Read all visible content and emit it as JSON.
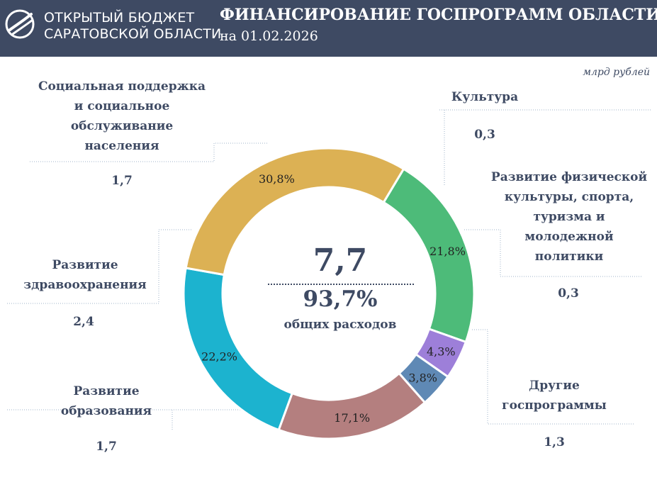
{
  "header": {
    "brand_line1": "ОТКРЫТЫЙ БЮДЖЕТ",
    "brand_line2": "САРАТОВСКОЙ ОБЛАСТИ",
    "title": "ФИНАНСИРОВАНИЕ ГОСПРОГРАММ ОБЛАСТИ",
    "subtitle": "на 01.02.2026"
  },
  "unit": "млрд рублей",
  "center": {
    "total": "7,7",
    "percent": "93,7%",
    "caption": "общих расходов"
  },
  "categories": [
    {
      "label_lines": [
        "Социальная поддержка",
        "и социальное",
        "обслуживание",
        "населения"
      ],
      "value": "1,7"
    },
    {
      "label_lines": [
        "Культура"
      ],
      "value": "0,3"
    },
    {
      "label_lines": [
        "Развитие физической",
        "культуры, спорта,",
        "туризма и",
        "молодежной",
        "политики"
      ],
      "value": "0,3"
    },
    {
      "label_lines": [
        "Другие",
        "госпрограммы"
      ],
      "value": "1,3"
    },
    {
      "label_lines": [
        "Развитие",
        "образования"
      ],
      "value": "1,7"
    },
    {
      "label_lines": [
        "Развитие",
        "здравоохранения"
      ],
      "value": "2,4"
    }
  ],
  "chart_data": {
    "type": "pie",
    "categories": [
      "Социальная поддержка и социальное обслуживание населения",
      "Культура",
      "Развитие физической культуры, спорта, туризма и молодежной политики",
      "Другие госпрограммы",
      "Развитие образования",
      "Развитие здравоохранения"
    ],
    "percent_values": [
      21.8,
      4.3,
      3.8,
      17.1,
      22.2,
      30.8
    ],
    "percent_labels": [
      "21,8%",
      "4,3%",
      "3,8%",
      "17,1%",
      "22,2%",
      "30,8%"
    ],
    "values": [
      1.7,
      0.3,
      0.3,
      1.3,
      1.7,
      2.4
    ],
    "colors": [
      "#4dbb79",
      "#9d7fd9",
      "#5f89b5",
      "#b47f7f",
      "#1cb3cf",
      "#dcb154"
    ],
    "start_angle_deg": -59,
    "donut": true,
    "total": 7.7,
    "total_share_percent": 93.7
  }
}
